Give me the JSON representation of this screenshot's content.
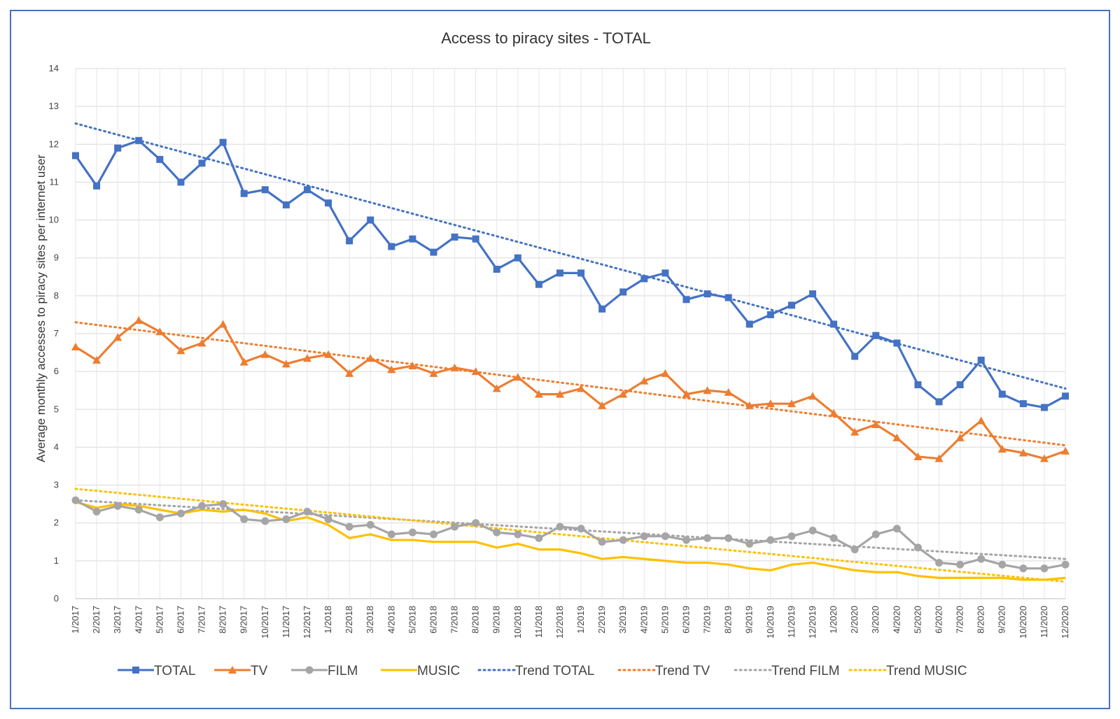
{
  "chart_data": {
    "type": "line",
    "title": "Access to piracy sites - TOTAL",
    "xlabel": "",
    "ylabel": "Average monthly accesses to piracy sites per internet user",
    "ylim": [
      0,
      14
    ],
    "yticks": [
      0,
      1,
      2,
      3,
      4,
      5,
      6,
      7,
      8,
      9,
      10,
      11,
      12,
      13,
      14
    ],
    "grid": true,
    "legend": "bottom",
    "categories": [
      "1/2017",
      "2/2017",
      "3/2017",
      "4/2017",
      "5/2017",
      "6/2017",
      "7/2017",
      "8/2017",
      "9/2017",
      "10/2017",
      "11/2017",
      "12/2017",
      "1/2018",
      "2/2018",
      "3/2018",
      "4/2018",
      "5/2018",
      "6/2018",
      "7/2018",
      "8/2018",
      "9/2018",
      "10/2018",
      "11/2018",
      "12/2018",
      "1/2019",
      "2/2019",
      "3/2019",
      "4/2019",
      "5/2019",
      "6/2019",
      "7/2019",
      "8/2019",
      "9/2019",
      "10/2019",
      "11/2019",
      "12/2019",
      "1/2020",
      "2/2020",
      "3/2020",
      "4/2020",
      "5/2020",
      "6/2020",
      "7/2020",
      "8/2020",
      "9/2020",
      "10/2020",
      "11/2020",
      "12/2020"
    ],
    "series": [
      {
        "name": "TOTAL",
        "color": "#4472c4",
        "marker": "square",
        "values": [
          11.7,
          10.9,
          11.9,
          12.1,
          11.6,
          11.0,
          11.5,
          12.05,
          10.7,
          10.8,
          10.4,
          10.8,
          10.45,
          9.45,
          10.0,
          9.3,
          9.5,
          9.15,
          9.55,
          9.5,
          8.7,
          9.0,
          8.3,
          8.6,
          8.6,
          7.65,
          8.1,
          8.45,
          8.6,
          7.9,
          8.05,
          7.95,
          7.25,
          7.5,
          7.75,
          8.05,
          7.25,
          6.4,
          6.95,
          6.75,
          5.65,
          5.2,
          5.65,
          6.3,
          5.4,
          5.15,
          5.05,
          5.35
        ]
      },
      {
        "name": "TV",
        "color": "#ed7d31",
        "marker": "triangle",
        "values": [
          6.65,
          6.3,
          6.9,
          7.35,
          7.05,
          6.55,
          6.75,
          7.25,
          6.25,
          6.45,
          6.2,
          6.35,
          6.45,
          5.95,
          6.35,
          6.05,
          6.15,
          5.95,
          6.1,
          6.0,
          5.55,
          5.85,
          5.4,
          5.4,
          5.55,
          5.1,
          5.4,
          5.75,
          5.95,
          5.4,
          5.5,
          5.45,
          5.1,
          5.15,
          5.15,
          5.35,
          4.9,
          4.4,
          4.6,
          4.25,
          3.75,
          3.7,
          4.25,
          4.7,
          3.95,
          3.85,
          3.7,
          3.9
        ]
      },
      {
        "name": "FILM",
        "color": "#a5a5a5",
        "marker": "circle",
        "values": [
          2.6,
          2.3,
          2.45,
          2.35,
          2.15,
          2.25,
          2.45,
          2.5,
          2.1,
          2.05,
          2.1,
          2.3,
          2.1,
          1.9,
          1.95,
          1.7,
          1.75,
          1.7,
          1.9,
          2.0,
          1.75,
          1.7,
          1.6,
          1.9,
          1.85,
          1.5,
          1.55,
          1.65,
          1.65,
          1.55,
          1.6,
          1.6,
          1.45,
          1.55,
          1.65,
          1.8,
          1.6,
          1.3,
          1.7,
          1.85,
          1.35,
          0.95,
          0.9,
          1.05,
          0.9,
          0.8,
          0.8,
          0.9
        ]
      },
      {
        "name": "MUSIC",
        "color": "#ffc000",
        "marker": "none",
        "values": [
          2.55,
          2.4,
          2.5,
          2.45,
          2.35,
          2.25,
          2.35,
          2.3,
          2.35,
          2.25,
          2.05,
          2.15,
          1.95,
          1.6,
          1.7,
          1.55,
          1.55,
          1.5,
          1.5,
          1.5,
          1.35,
          1.45,
          1.3,
          1.3,
          1.2,
          1.05,
          1.1,
          1.05,
          1.0,
          0.95,
          0.95,
          0.9,
          0.8,
          0.75,
          0.9,
          0.95,
          0.85,
          0.75,
          0.7,
          0.7,
          0.6,
          0.55,
          0.55,
          0.55,
          0.55,
          0.5,
          0.5,
          0.55
        ]
      }
    ],
    "trendlines": [
      {
        "name": "Trend TOTAL",
        "color": "#4472c4",
        "start": 12.55,
        "end": 5.55
      },
      {
        "name": "Trend TV",
        "color": "#ed7d31",
        "start": 7.3,
        "end": 4.05
      },
      {
        "name": "Trend FILM",
        "color": "#a5a5a5",
        "start": 2.6,
        "end": 1.05
      },
      {
        "name": "Trend MUSIC",
        "color": "#ffc000",
        "start": 2.9,
        "end": 0.45
      }
    ]
  }
}
